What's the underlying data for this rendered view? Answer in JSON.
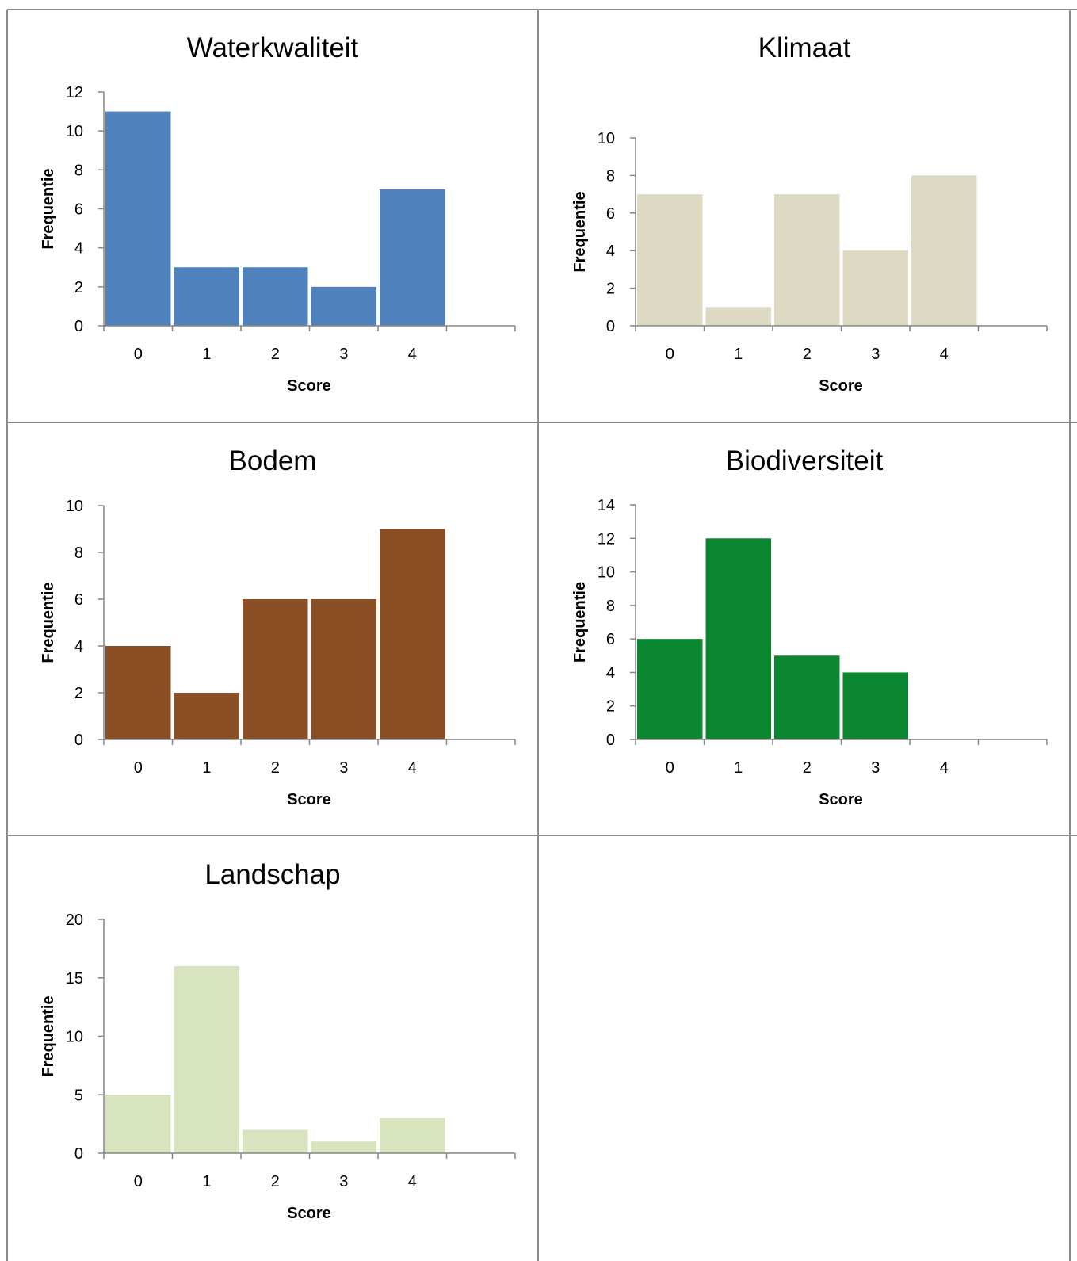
{
  "chart_data": [
    {
      "type": "bar",
      "title": "Waterkwaliteit",
      "xlabel": "Score",
      "ylabel": "Frequentie",
      "categories": [
        "0",
        "1",
        "2",
        "3",
        "4"
      ],
      "values": [
        11,
        3,
        3,
        2,
        7
      ],
      "ylim": [
        0,
        12
      ],
      "yticks": [
        0,
        2,
        4,
        6,
        8,
        10,
        12
      ],
      "color": "#4f81bd",
      "grid": false,
      "legend": "none"
    },
    {
      "type": "bar",
      "title": "Klimaat",
      "xlabel": "Score",
      "ylabel": "Frequentie",
      "categories": [
        "0",
        "1",
        "2",
        "3",
        "4"
      ],
      "values": [
        7,
        1,
        7,
        4,
        8
      ],
      "ylim": [
        0,
        10
      ],
      "yticks": [
        0,
        2,
        4,
        6,
        8,
        10
      ],
      "color": "#ddd9c3",
      "grid": false,
      "legend": "none"
    },
    {
      "type": "bar",
      "title": "Bodem",
      "xlabel": "Score",
      "ylabel": "Frequentie",
      "categories": [
        "0",
        "1",
        "2",
        "3",
        "4"
      ],
      "values": [
        4,
        2,
        6,
        6,
        9
      ],
      "ylim": [
        0,
        10
      ],
      "yticks": [
        0,
        2,
        4,
        6,
        8,
        10
      ],
      "color": "#8b4f26",
      "grid": false,
      "legend": "none"
    },
    {
      "type": "bar",
      "title": "Biodiversiteit",
      "xlabel": "Score",
      "ylabel": "Frequentie",
      "categories": [
        "0",
        "1",
        "2",
        "3",
        "4"
      ],
      "values": [
        6,
        12,
        5,
        4,
        0
      ],
      "ylim": [
        0,
        14
      ],
      "yticks": [
        0,
        2,
        4,
        6,
        8,
        10,
        12,
        14
      ],
      "color": "#0b8630",
      "grid": false,
      "legend": "none"
    },
    {
      "type": "bar",
      "title": "Landschap",
      "xlabel": "Score",
      "ylabel": "Frequentie",
      "categories": [
        "0",
        "1",
        "2",
        "3",
        "4"
      ],
      "values": [
        5,
        16,
        2,
        1,
        3
      ],
      "ylim": [
        0,
        20
      ],
      "yticks": [
        0,
        5,
        10,
        15,
        20
      ],
      "color": "#d7e4bd",
      "grid": false,
      "legend": "none"
    }
  ]
}
